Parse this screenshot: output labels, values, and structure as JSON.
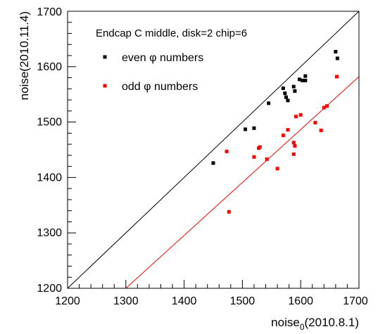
{
  "chart_data": {
    "type": "scatter",
    "title": "Endcap C middle, disk=2 chip=6",
    "xlabel": {
      "base": "noise",
      "subscript": "0",
      "suffix": "(2010.8.1)"
    },
    "ylabel": "noise(2010.11.4)",
    "xlim": [
      1200,
      1700
    ],
    "ylim": [
      1200,
      1700
    ],
    "xticks": [
      "1200",
      "1300",
      "1400",
      "1500",
      "1600",
      "1700"
    ],
    "yticks": [
      "1200",
      "1300",
      "1400",
      "1500",
      "1600",
      "1700"
    ],
    "grid": false,
    "legend_position": "top-left",
    "series": [
      {
        "name": "even φ numbers",
        "color": "#000000",
        "points": [
          [
            1450,
            1426
          ],
          [
            1505,
            1487
          ],
          [
            1520,
            1489
          ],
          [
            1545,
            1534
          ],
          [
            1570,
            1561
          ],
          [
            1573,
            1552
          ],
          [
            1575,
            1545
          ],
          [
            1578,
            1539
          ],
          [
            1588,
            1564
          ],
          [
            1590,
            1556
          ],
          [
            1598,
            1577
          ],
          [
            1603,
            1575
          ],
          [
            1608,
            1583
          ],
          [
            1608,
            1575
          ],
          [
            1660,
            1627
          ],
          [
            1663,
            1615
          ]
        ]
      },
      {
        "name": "odd φ numbers",
        "color": "#ff0000",
        "points": [
          [
            1473,
            1447
          ],
          [
            1477,
            1338
          ],
          [
            1520,
            1437
          ],
          [
            1528,
            1453
          ],
          [
            1530,
            1455
          ],
          [
            1542,
            1433
          ],
          [
            1560,
            1416
          ],
          [
            1570,
            1476
          ],
          [
            1578,
            1486
          ],
          [
            1588,
            1442
          ],
          [
            1588,
            1463
          ],
          [
            1590,
            1457
          ],
          [
            1592,
            1510
          ],
          [
            1600,
            1513
          ],
          [
            1625,
            1499
          ],
          [
            1635,
            1485
          ],
          [
            1640,
            1526
          ],
          [
            1645,
            1529
          ],
          [
            1662,
            1582
          ]
        ]
      }
    ],
    "lines": [
      {
        "color": "#000000",
        "from": [
          1200,
          1200
        ],
        "to": [
          1700,
          1700
        ]
      },
      {
        "color": "#ff0000",
        "from": [
          1300,
          1200
        ],
        "to": [
          1700,
          1582
        ]
      }
    ]
  }
}
